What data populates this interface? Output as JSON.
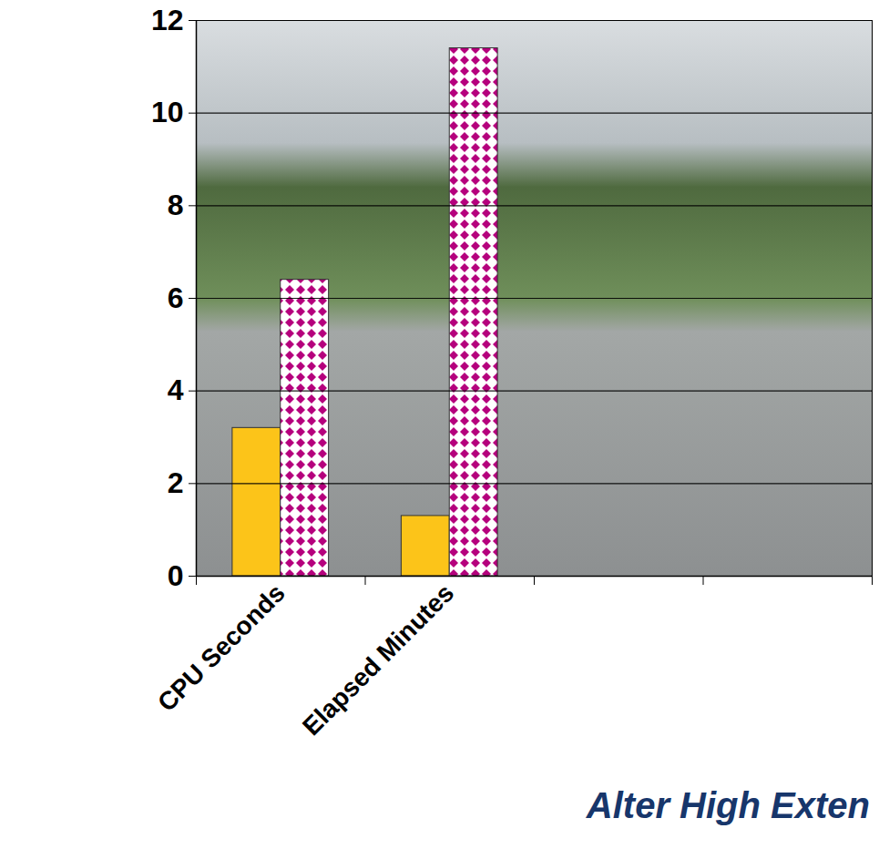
{
  "chart_data": {
    "type": "bar",
    "categories": [
      "CPU Seconds",
      "Elapsed Minutes",
      null,
      null
    ],
    "series": [
      {
        "color": "#fcc419",
        "values": [
          3.2,
          1.3,
          null,
          null
        ]
      },
      {
        "color": "#b5007d",
        "values": [
          6.4,
          11.4,
          null,
          null
        ]
      }
    ],
    "ylim": [
      0,
      12
    ],
    "yticks": [
      0,
      2,
      4,
      6,
      8,
      10,
      12
    ],
    "grid": true,
    "annotations": [
      "Alter High Exten"
    ]
  }
}
